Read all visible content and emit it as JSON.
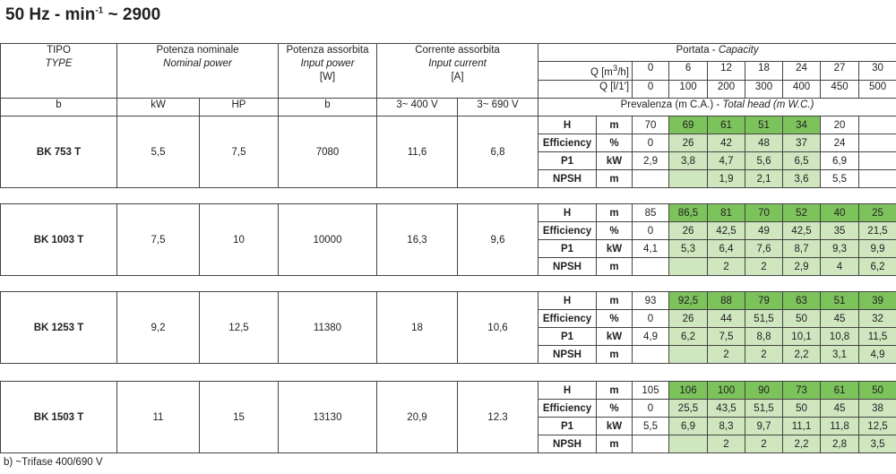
{
  "header": {
    "title": {
      "text": "50 Hz - min",
      "sup": "-1",
      "rest": "~ 2900"
    }
  },
  "columns": {
    "type": {
      "it": "TIPO",
      "en": "TYPE",
      "unit": "b"
    },
    "nominal_power": {
      "it": "Potenza nominale",
      "en": "Nominal power",
      "unit_kw": "kW",
      "unit_hp": "HP"
    },
    "input_power": {
      "it": "Potenza assorbita",
      "en": "Input power",
      "unit": "[W]",
      "note": "b"
    },
    "input_current": {
      "it": "Corrente assorbita",
      "en": "Input current",
      "unit": "[A]",
      "v400": "3~ 400 V",
      "v690": "3~ 690 V"
    },
    "capacity": {
      "it": "Portata - ",
      "en": "Capacity"
    },
    "q_m3h": {
      "label": "Q [m",
      "sup": "3",
      "label_end": "/h]",
      "values": [
        "0",
        "6",
        "12",
        "18",
        "24",
        "27",
        "30"
      ]
    },
    "q_lmin": {
      "label": "Q [l/1']",
      "values": [
        "0",
        "100",
        "200",
        "300",
        "400",
        "450",
        "500"
      ]
    },
    "head": {
      "it": "Prevalenza (m C.A.) - ",
      "en": "Total head (m W.C.)"
    }
  },
  "models": [
    {
      "name": "BK 753 T",
      "kw": "5,5",
      "hp": "7,5",
      "w": "7080",
      "a400": "11,6",
      "a690": "6,8",
      "rows": [
        {
          "label": "H",
          "unit": "m",
          "values": [
            "70",
            "69",
            "61",
            "51",
            "34",
            "20",
            null
          ]
        },
        {
          "label": "Efficiency",
          "unit": "%",
          "values": [
            "0",
            "26",
            "42",
            "48",
            "37",
            "24",
            null
          ]
        },
        {
          "label": "P1",
          "unit": "kW",
          "values": [
            "2,9",
            "3,8",
            "4,7",
            "5,6",
            "6,5",
            "6,9",
            null
          ]
        },
        {
          "label": "NPSH",
          "unit": "m",
          "values": [
            null,
            null,
            "1,9",
            "2,1",
            "3,6",
            "5,5",
            null
          ]
        }
      ]
    },
    {
      "name": "BK 1003 T",
      "kw": "7,5",
      "hp": "10",
      "w": "10000",
      "a400": "16,3",
      "a690": "9,6",
      "rows": [
        {
          "label": "H",
          "unit": "m",
          "values": [
            "85",
            "86,5",
            "81",
            "70",
            "52",
            "40",
            "25"
          ]
        },
        {
          "label": "Efficiency",
          "unit": "%",
          "values": [
            "0",
            "26",
            "42,5",
            "49",
            "42,5",
            "35",
            "21,5"
          ]
        },
        {
          "label": "P1",
          "unit": "kW",
          "values": [
            "4,1",
            "5,3",
            "6,4",
            "7,6",
            "8,7",
            "9,3",
            "9,9"
          ]
        },
        {
          "label": "NPSH",
          "unit": "m",
          "values": [
            null,
            null,
            "2",
            "2",
            "2,9",
            "4",
            "6,2"
          ]
        }
      ]
    },
    {
      "name": "BK 1253 T",
      "kw": "9,2",
      "hp": "12,5",
      "w": "11380",
      "a400": "18",
      "a690": "10,6",
      "rows": [
        {
          "label": "H",
          "unit": "m",
          "values": [
            "93",
            "92,5",
            "88",
            "79",
            "63",
            "51",
            "39"
          ]
        },
        {
          "label": "Efficiency",
          "unit": "%",
          "values": [
            "0",
            "26",
            "44",
            "51,5",
            "50",
            "45",
            "32"
          ]
        },
        {
          "label": "P1",
          "unit": "kW",
          "values": [
            "4,9",
            "6,2",
            "7,5",
            "8,8",
            "10,1",
            "10,8",
            "11,5"
          ]
        },
        {
          "label": "NPSH",
          "unit": "m",
          "values": [
            null,
            null,
            "2",
            "2",
            "2,2",
            "3,1",
            "4,9"
          ]
        }
      ]
    },
    {
      "name": "BK 1503 T",
      "kw": "11",
      "hp": "15",
      "w": "13130",
      "a400": "20,9",
      "a690": "12.3",
      "rows": [
        {
          "label": "H",
          "unit": "m",
          "values": [
            "105",
            "106",
            "100",
            "90",
            "73",
            "61",
            "50"
          ]
        },
        {
          "label": "Efficiency",
          "unit": "%",
          "values": [
            "0",
            "25,5",
            "43,5",
            "51,5",
            "50",
            "45",
            "38"
          ]
        },
        {
          "label": "P1",
          "unit": "kW",
          "values": [
            "5,5",
            "6,9",
            "8,3",
            "9,7",
            "11,1",
            "11,8",
            "12,5"
          ]
        },
        {
          "label": "NPSH",
          "unit": "m",
          "values": [
            null,
            null,
            "2",
            "2",
            "2,2",
            "2,8",
            "3,5"
          ]
        }
      ]
    }
  ],
  "footnote": "b) ~Trifase 400/690 V"
}
